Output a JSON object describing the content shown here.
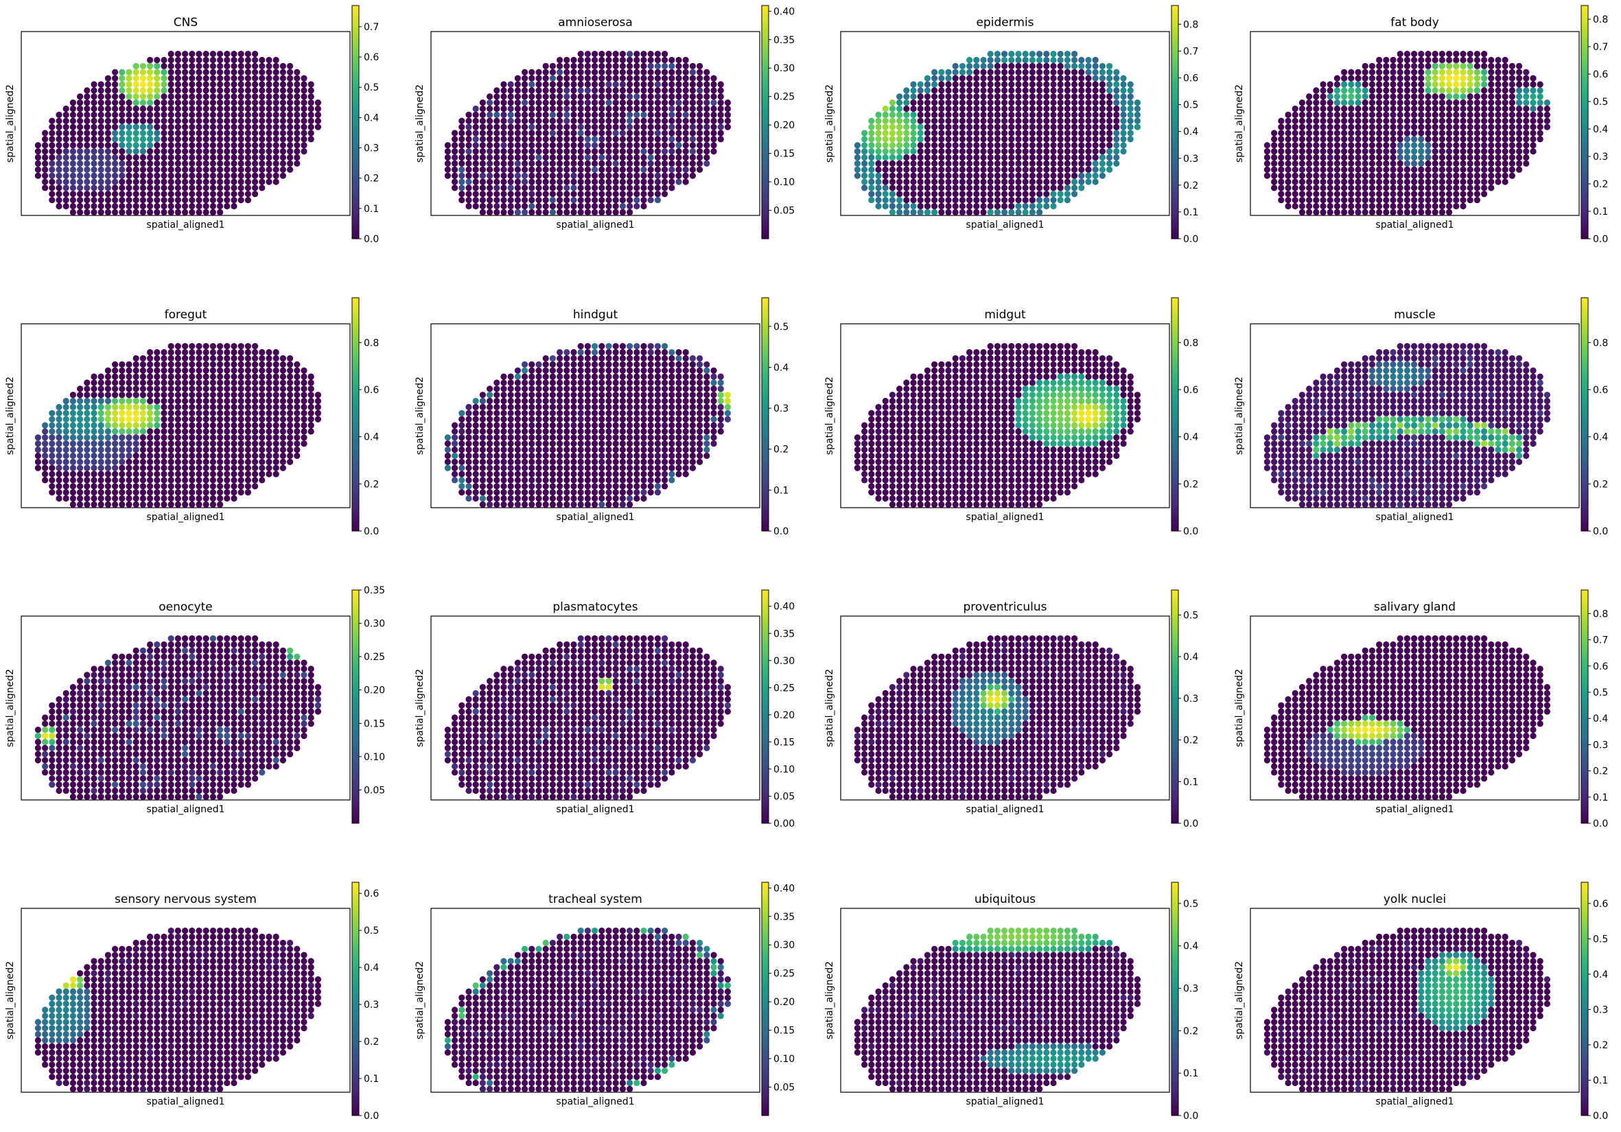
{
  "figure": {
    "colormap": "viridis",
    "colormap_stops": [
      "#440154",
      "#482878",
      "#3e4989",
      "#31688e",
      "#26828e",
      "#1f9e89",
      "#35b779",
      "#6ece58",
      "#b5de2b",
      "#fde725"
    ],
    "background_color": "#ffffff",
    "xlabel": "spatial_aligned1",
    "ylabel": "spatial_aligned2"
  },
  "chart_data": [
    {
      "type": "scatter",
      "title": "CNS",
      "xlabel": "spatial_aligned1",
      "ylabel": "spatial_aligned2",
      "colorbar": {
        "min": 0.0,
        "max": 0.77,
        "ticks": [
          0.0,
          0.1,
          0.2,
          0.3,
          0.4,
          0.5,
          0.6,
          0.7
        ],
        "tick_labels": [
          "0.0",
          "0.1",
          "0.2",
          "0.3",
          "0.4",
          "0.5",
          "0.6",
          "0.7"
        ]
      },
      "background_value": 0.0,
      "hotspots": [
        {
          "x": 0.37,
          "y": 0.72,
          "rx": 0.08,
          "ry": 0.12,
          "value": 0.77
        },
        {
          "x": 0.35,
          "y": 0.42,
          "rx": 0.07,
          "ry": 0.08,
          "value": 0.45
        },
        {
          "x": 0.2,
          "y": 0.25,
          "rx": 0.12,
          "ry": 0.12,
          "value": 0.15
        }
      ],
      "noise_level": 0.02
    },
    {
      "type": "scatter",
      "title": "amnioserosa",
      "xlabel": "spatial_aligned1",
      "ylabel": "spatial_aligned2",
      "colorbar": {
        "min": 0.0,
        "max": 0.41,
        "ticks": [
          0.05,
          0.1,
          0.15,
          0.2,
          0.25,
          0.3,
          0.35,
          0.4
        ],
        "tick_labels": [
          "0.05",
          "0.10",
          "0.15",
          "0.20",
          "0.25",
          "0.30",
          "0.35",
          "0.40"
        ]
      },
      "background_value": 0.0,
      "hotspots": [
        {
          "x": 0.17,
          "y": 0.72,
          "rx": 0.05,
          "ry": 0.05,
          "value": 0.41
        }
      ],
      "noise_level": 0.28
    },
    {
      "type": "scatter",
      "title": "epidermis",
      "xlabel": "spatial_aligned1",
      "ylabel": "spatial_aligned2",
      "colorbar": {
        "min": 0.0,
        "max": 0.87,
        "ticks": [
          0.0,
          0.1,
          0.2,
          0.3,
          0.4,
          0.5,
          0.6,
          0.7,
          0.8
        ],
        "tick_labels": [
          "0.0",
          "0.1",
          "0.2",
          "0.3",
          "0.4",
          "0.5",
          "0.6",
          "0.7",
          "0.8"
        ]
      },
      "background_value": 0.0,
      "ring_value": 0.45,
      "hotspots": [
        {
          "x": 0.15,
          "y": 0.45,
          "rx": 0.1,
          "ry": 0.15,
          "value": 0.75
        },
        {
          "x": 0.12,
          "y": 0.62,
          "rx": 0.05,
          "ry": 0.07,
          "value": 0.87
        }
      ],
      "noise_level": 0.03
    },
    {
      "type": "scatter",
      "title": "fat body",
      "xlabel": "spatial_aligned1",
      "ylabel": "spatial_aligned2",
      "colorbar": {
        "min": 0.0,
        "max": 0.85,
        "ticks": [
          0.0,
          0.1,
          0.2,
          0.3,
          0.4,
          0.5,
          0.6,
          0.7,
          0.8
        ],
        "tick_labels": [
          "0.0",
          "0.1",
          "0.2",
          "0.3",
          "0.4",
          "0.5",
          "0.6",
          "0.7",
          "0.8"
        ]
      },
      "background_value": 0.0,
      "hotspots": [
        {
          "x": 0.62,
          "y": 0.74,
          "rx": 0.1,
          "ry": 0.1,
          "value": 0.85
        },
        {
          "x": 0.3,
          "y": 0.66,
          "rx": 0.06,
          "ry": 0.06,
          "value": 0.6
        },
        {
          "x": 0.86,
          "y": 0.64,
          "rx": 0.06,
          "ry": 0.06,
          "value": 0.5
        },
        {
          "x": 0.5,
          "y": 0.35,
          "rx": 0.05,
          "ry": 0.08,
          "value": 0.35
        }
      ],
      "noise_level": 0.04
    },
    {
      "type": "scatter",
      "title": "foregut",
      "xlabel": "spatial_aligned1",
      "ylabel": "spatial_aligned2",
      "colorbar": {
        "min": 0.0,
        "max": 0.99,
        "ticks": [
          0.0,
          0.2,
          0.4,
          0.6,
          0.8
        ],
        "tick_labels": [
          "0.0",
          "0.2",
          "0.4",
          "0.6",
          "0.8"
        ]
      },
      "background_value": 0.0,
      "hotspots": [
        {
          "x": 0.33,
          "y": 0.5,
          "rx": 0.1,
          "ry": 0.1,
          "value": 0.99
        },
        {
          "x": 0.2,
          "y": 0.48,
          "rx": 0.14,
          "ry": 0.12,
          "value": 0.5
        },
        {
          "x": 0.2,
          "y": 0.35,
          "rx": 0.16,
          "ry": 0.16,
          "value": 0.22
        }
      ],
      "noise_level": 0.02
    },
    {
      "type": "scatter",
      "title": "hindgut",
      "xlabel": "spatial_aligned1",
      "ylabel": "spatial_aligned2",
      "colorbar": {
        "min": 0.0,
        "max": 0.57,
        "ticks": [
          0.0,
          0.1,
          0.2,
          0.3,
          0.4,
          0.5
        ],
        "tick_labels": [
          "0.0",
          "0.1",
          "0.2",
          "0.3",
          "0.4",
          "0.5"
        ]
      },
      "background_value": 0.0,
      "hotspots": [
        {
          "x": 0.92,
          "y": 0.6,
          "rx": 0.05,
          "ry": 0.07,
          "value": 0.57
        }
      ],
      "edge_value": 0.25,
      "noise_level": 0.05
    },
    {
      "type": "scatter",
      "title": "midgut",
      "xlabel": "spatial_aligned1",
      "ylabel": "spatial_aligned2",
      "colorbar": {
        "min": 0.0,
        "max": 0.99,
        "ticks": [
          0.0,
          0.2,
          0.4,
          0.6,
          0.8
        ],
        "tick_labels": [
          "0.0",
          "0.2",
          "0.4",
          "0.6",
          "0.8"
        ]
      },
      "background_value": 0.0,
      "hotspots": [
        {
          "x": 0.7,
          "y": 0.52,
          "rx": 0.18,
          "ry": 0.2,
          "value": 0.8
        },
        {
          "x": 0.75,
          "y": 0.5,
          "rx": 0.08,
          "ry": 0.1,
          "value": 0.99
        }
      ],
      "noise_level": 0.05
    },
    {
      "type": "scatter",
      "title": "muscle",
      "xlabel": "spatial_aligned1",
      "ylabel": "spatial_aligned2",
      "colorbar": {
        "min": 0.0,
        "max": 0.99,
        "ticks": [
          0.0,
          0.2,
          0.4,
          0.6,
          0.8
        ],
        "tick_labels": [
          "0.0",
          "0.2",
          "0.4",
          "0.6",
          "0.8"
        ]
      },
      "background_value": 0.05,
      "band": {
        "y": 0.33,
        "from": 0.2,
        "to": 0.82,
        "value": 0.85
      },
      "hotspots": [
        {
          "x": 0.45,
          "y": 0.72,
          "rx": 0.1,
          "ry": 0.08,
          "value": 0.4
        }
      ],
      "noise_level": 0.2
    },
    {
      "type": "scatter",
      "title": "oenocyte",
      "xlabel": "spatial_aligned1",
      "ylabel": "spatial_aligned2",
      "colorbar": {
        "min": 0.0,
        "max": 0.35,
        "ticks": [
          0.05,
          0.1,
          0.15,
          0.2,
          0.25,
          0.3,
          0.35
        ],
        "tick_labels": [
          "0.05",
          "0.10",
          "0.15",
          "0.20",
          "0.25",
          "0.30",
          "0.35"
        ]
      },
      "background_value": 0.0,
      "hotspots": [
        {
          "x": 0.08,
          "y": 0.35,
          "rx": 0.03,
          "ry": 0.04,
          "value": 0.35
        },
        {
          "x": 0.85,
          "y": 0.82,
          "rx": 0.05,
          "ry": 0.06,
          "value": 0.3
        }
      ],
      "noise_level": 0.3
    },
    {
      "type": "scatter",
      "title": "plasmatocytes",
      "xlabel": "spatial_aligned1",
      "ylabel": "spatial_aligned2",
      "colorbar": {
        "min": 0.0,
        "max": 0.43,
        "ticks": [
          0.0,
          0.05,
          0.1,
          0.15,
          0.2,
          0.25,
          0.3,
          0.35,
          0.4
        ],
        "tick_labels": [
          "0.00",
          "0.05",
          "0.10",
          "0.15",
          "0.20",
          "0.25",
          "0.30",
          "0.35",
          "0.40"
        ]
      },
      "background_value": 0.0,
      "hotspots": [
        {
          "x": 0.53,
          "y": 0.62,
          "rx": 0.03,
          "ry": 0.04,
          "value": 0.43
        }
      ],
      "noise_level": 0.22
    },
    {
      "type": "scatter",
      "title": "proventriculus",
      "xlabel": "spatial_aligned1",
      "ylabel": "spatial_aligned2",
      "colorbar": {
        "min": 0.0,
        "max": 0.56,
        "ticks": [
          0.0,
          0.1,
          0.2,
          0.3,
          0.4,
          0.5
        ],
        "tick_labels": [
          "0.0",
          "0.1",
          "0.2",
          "0.3",
          "0.4",
          "0.5"
        ]
      },
      "background_value": 0.0,
      "hotspots": [
        {
          "x": 0.47,
          "y": 0.55,
          "rx": 0.05,
          "ry": 0.07,
          "value": 0.56
        },
        {
          "x": 0.45,
          "y": 0.5,
          "rx": 0.12,
          "ry": 0.2,
          "value": 0.25
        }
      ],
      "noise_level": 0.1
    },
    {
      "type": "scatter",
      "title": "salivary gland",
      "xlabel": "spatial_aligned1",
      "ylabel": "spatial_aligned2",
      "colorbar": {
        "min": 0.0,
        "max": 0.89,
        "ticks": [
          0.0,
          0.1,
          0.2,
          0.3,
          0.4,
          0.5,
          0.6,
          0.7,
          0.8
        ],
        "tick_labels": [
          "0.0",
          "0.1",
          "0.2",
          "0.3",
          "0.4",
          "0.5",
          "0.6",
          "0.7",
          "0.8"
        ]
      },
      "background_value": 0.0,
      "hotspots": [
        {
          "x": 0.36,
          "y": 0.38,
          "rx": 0.12,
          "ry": 0.07,
          "value": 0.89
        },
        {
          "x": 0.35,
          "y": 0.28,
          "rx": 0.18,
          "ry": 0.14,
          "value": 0.2
        }
      ],
      "noise_level": 0.02
    },
    {
      "type": "scatter",
      "title": "sensory nervous system",
      "xlabel": "spatial_aligned1",
      "ylabel": "spatial_aligned2",
      "colorbar": {
        "min": 0.0,
        "max": 0.63,
        "ticks": [
          0.0,
          0.1,
          0.2,
          0.3,
          0.4,
          0.5,
          0.6
        ],
        "tick_labels": [
          "0.0",
          "0.1",
          "0.2",
          "0.3",
          "0.4",
          "0.5",
          "0.6"
        ]
      },
      "background_value": 0.0,
      "hotspots": [
        {
          "x": 0.15,
          "y": 0.6,
          "rx": 0.04,
          "ry": 0.05,
          "value": 0.63
        },
        {
          "x": 0.12,
          "y": 0.45,
          "rx": 0.1,
          "ry": 0.2,
          "value": 0.28
        }
      ],
      "noise_level": 0.08
    },
    {
      "type": "scatter",
      "title": "tracheal system",
      "xlabel": "spatial_aligned1",
      "ylabel": "spatial_aligned2",
      "colorbar": {
        "min": 0.0,
        "max": 0.41,
        "ticks": [
          0.05,
          0.1,
          0.15,
          0.2,
          0.25,
          0.3,
          0.35,
          0.4
        ],
        "tick_labels": [
          "0.05",
          "0.10",
          "0.15",
          "0.20",
          "0.25",
          "0.30",
          "0.35",
          "0.40"
        ]
      },
      "background_value": 0.0,
      "edge_value": 0.3,
      "hotspots": [
        {
          "x": 0.5,
          "y": 0.95,
          "rx": 0.15,
          "ry": 0.05,
          "value": 0.41
        }
      ],
      "noise_level": 0.12
    },
    {
      "type": "scatter",
      "title": "ubiquitous",
      "xlabel": "spatial_aligned1",
      "ylabel": "spatial_aligned2",
      "colorbar": {
        "min": 0.0,
        "max": 0.55,
        "ticks": [
          0.0,
          0.1,
          0.2,
          0.3,
          0.4,
          0.5
        ],
        "tick_labels": [
          "0.0",
          "0.1",
          "0.2",
          "0.3",
          "0.4",
          "0.5"
        ]
      },
      "background_value": 0.0,
      "hotspots": [
        {
          "x": 0.55,
          "y": 0.85,
          "rx": 0.3,
          "ry": 0.1,
          "value": 0.45
        },
        {
          "x": 0.65,
          "y": 0.18,
          "rx": 0.22,
          "ry": 0.08,
          "value": 0.3
        }
      ],
      "noise_level": 0.1
    },
    {
      "type": "scatter",
      "title": "yolk nuclei",
      "xlabel": "spatial_aligned1",
      "ylabel": "spatial_aligned2",
      "colorbar": {
        "min": 0.0,
        "max": 0.66,
        "ticks": [
          0.0,
          0.1,
          0.2,
          0.3,
          0.4,
          0.5,
          0.6
        ],
        "tick_labels": [
          "0.0",
          "0.1",
          "0.2",
          "0.3",
          "0.4",
          "0.5",
          "0.6"
        ]
      },
      "background_value": 0.0,
      "hotspots": [
        {
          "x": 0.62,
          "y": 0.55,
          "rx": 0.12,
          "ry": 0.22,
          "value": 0.45
        },
        {
          "x": 0.62,
          "y": 0.68,
          "rx": 0.04,
          "ry": 0.05,
          "value": 0.66
        }
      ],
      "noise_level": 0.1
    }
  ]
}
